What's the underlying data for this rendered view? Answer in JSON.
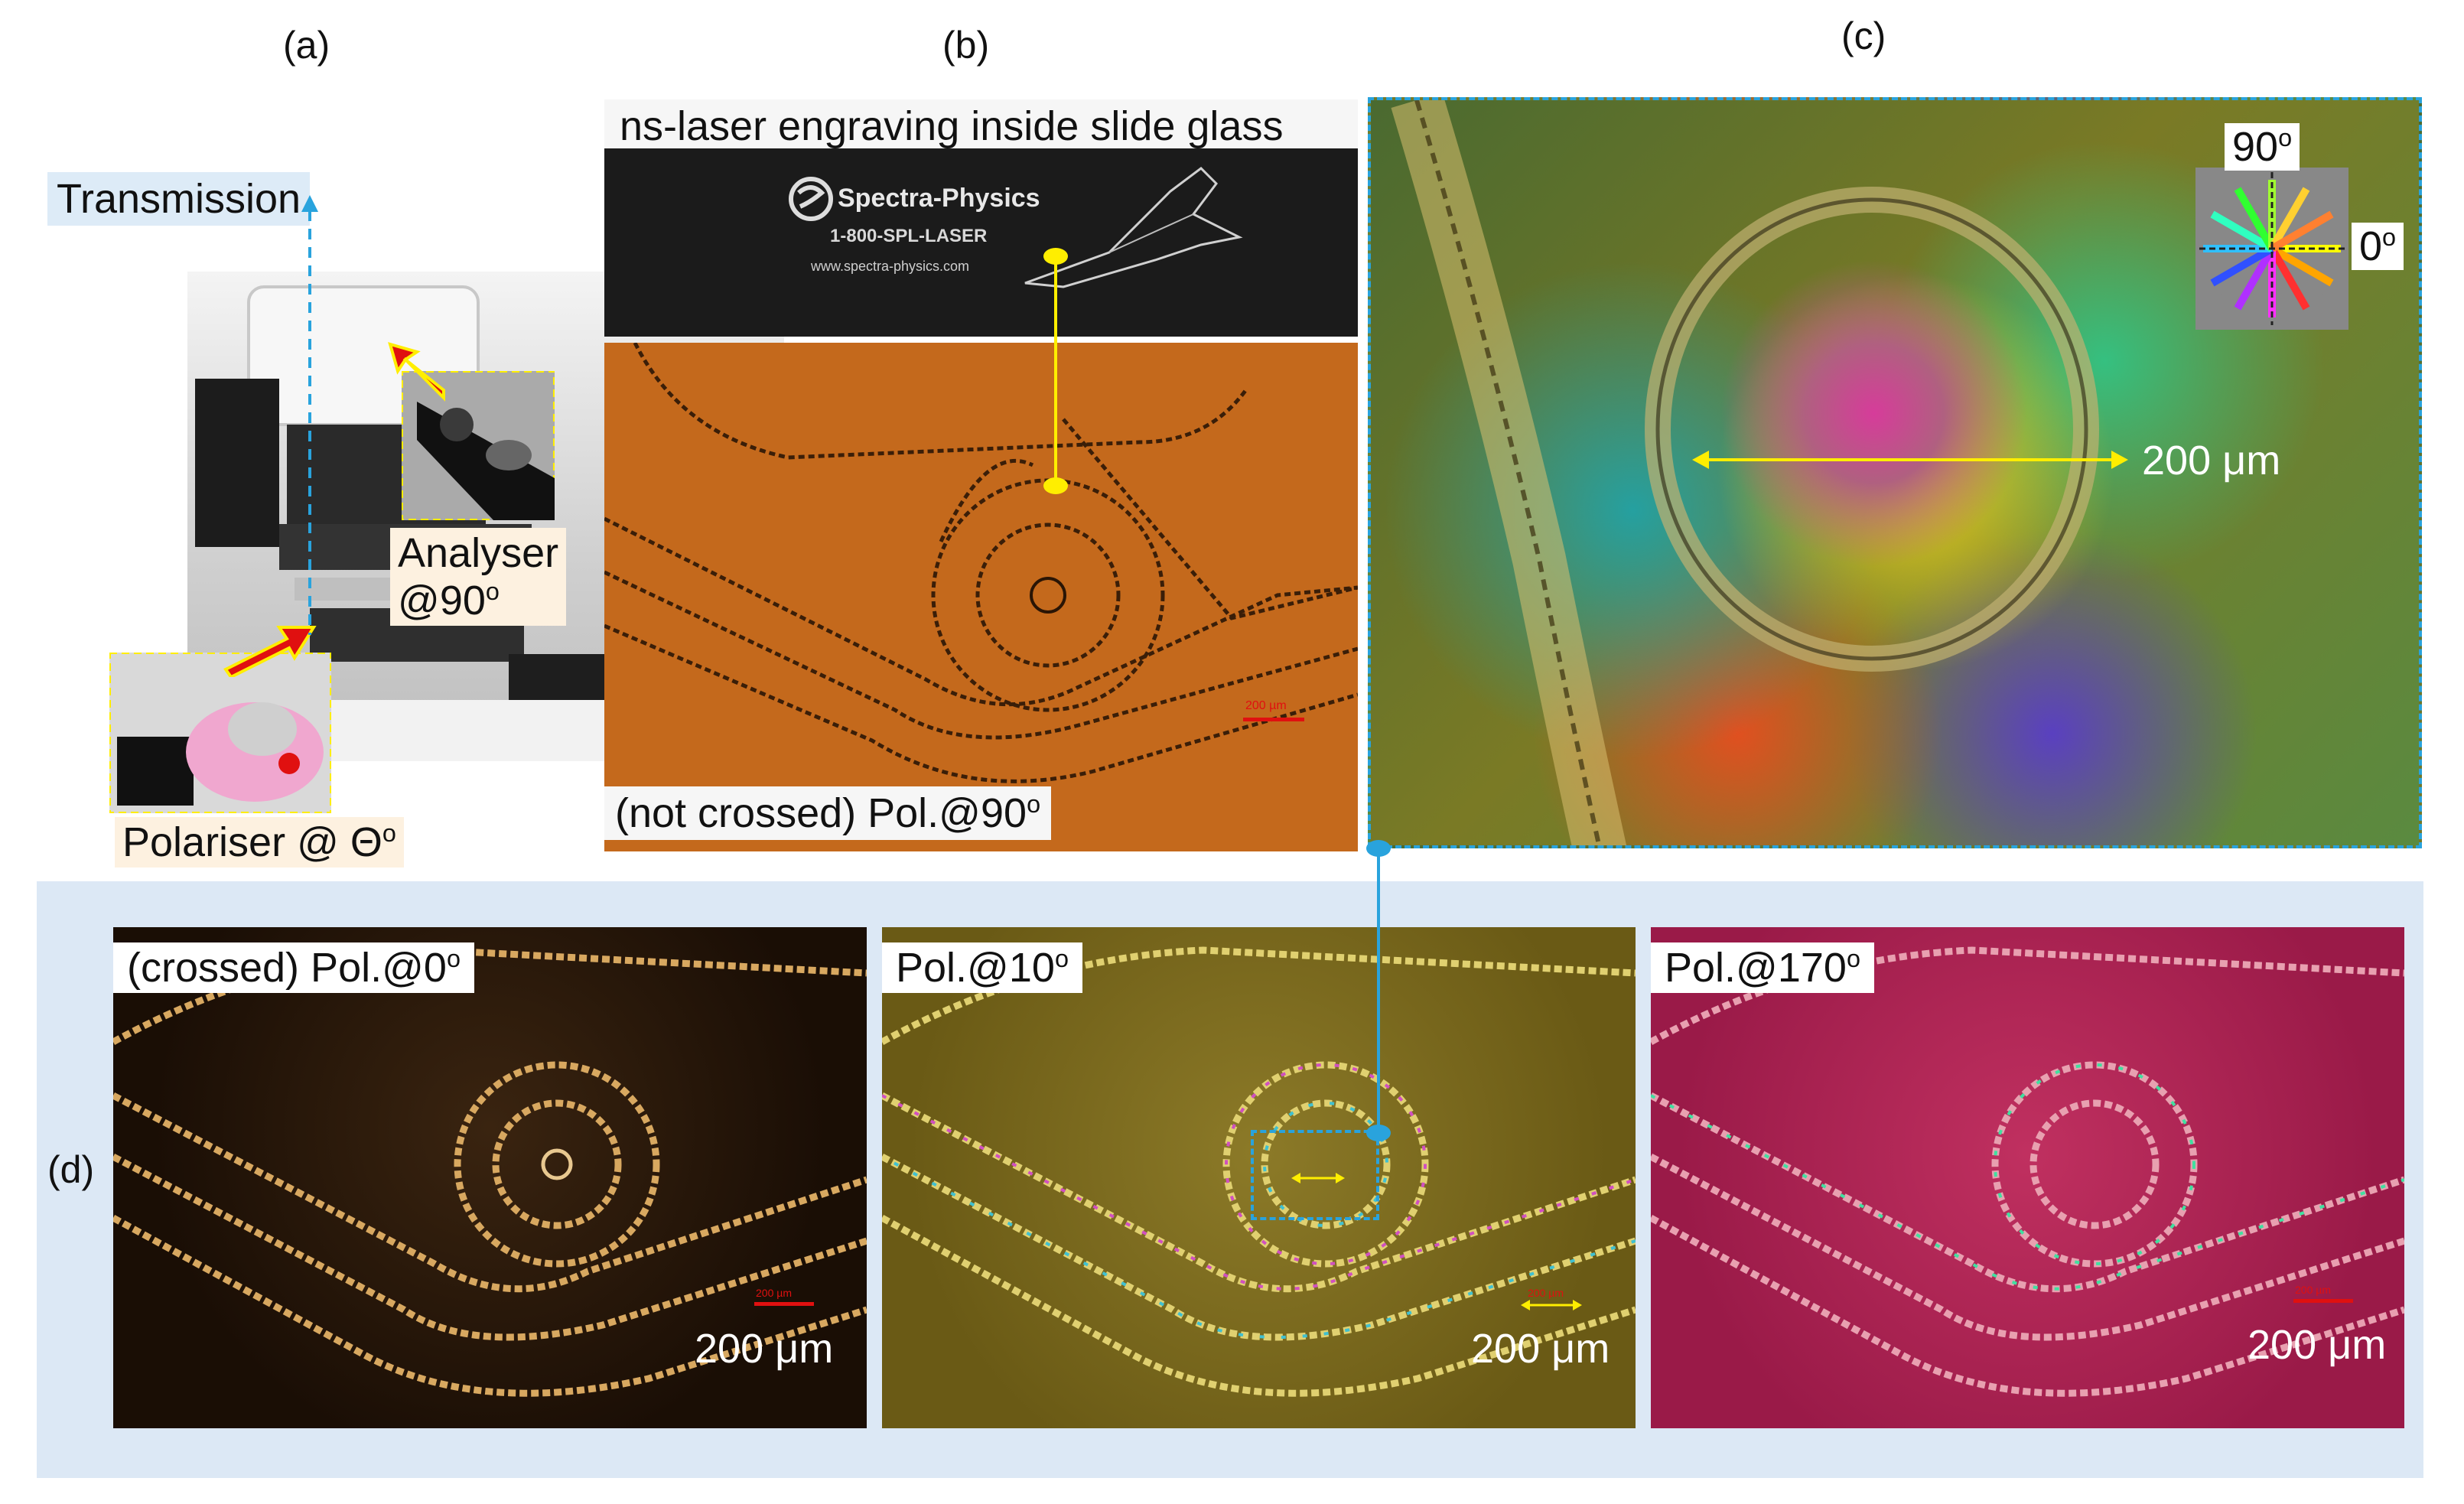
{
  "panels": {
    "a": {
      "label": "(a)",
      "transmission": "Transmission",
      "analyser_line1": "Analyser",
      "analyser_line2": "@90",
      "analyser_sup": "o",
      "polariser": "Polariser @ Θ",
      "polariser_sup": "o"
    },
    "b": {
      "label": "(b)",
      "title": "ns-laser engraving inside slide glass",
      "brand": "Spectra-Physics",
      "phone": "1-800-SPL-LASER",
      "url": "www.spectra-physics.com",
      "caption": "(not crossed) Pol.@90",
      "caption_sup": "o",
      "scalebar": "200 µm"
    },
    "c": {
      "label": "(c)",
      "angle_90": "90",
      "angle_0": "0",
      "angle_sup": "o",
      "scale": "200 μm"
    },
    "d": {
      "label": "(d)",
      "images": [
        {
          "caption": "(crossed) Pol.@0",
          "sup": "o",
          "scale": "200 μm",
          "tiny_scale": "200 µm"
        },
        {
          "caption": "Pol.@10",
          "sup": "o",
          "scale": "200 μm",
          "tiny_scale": "200 µm"
        },
        {
          "caption": "Pol.@170",
          "sup": "o",
          "scale": "200 μm",
          "tiny_scale": "200 µm"
        }
      ]
    }
  },
  "colors": {
    "accent_blue": "#29a3dd",
    "yellow": "#ffee00",
    "panel_d_bg": "#dce8f5",
    "orange_bg": "#c4691c",
    "scalebar_red": "#e01010"
  }
}
